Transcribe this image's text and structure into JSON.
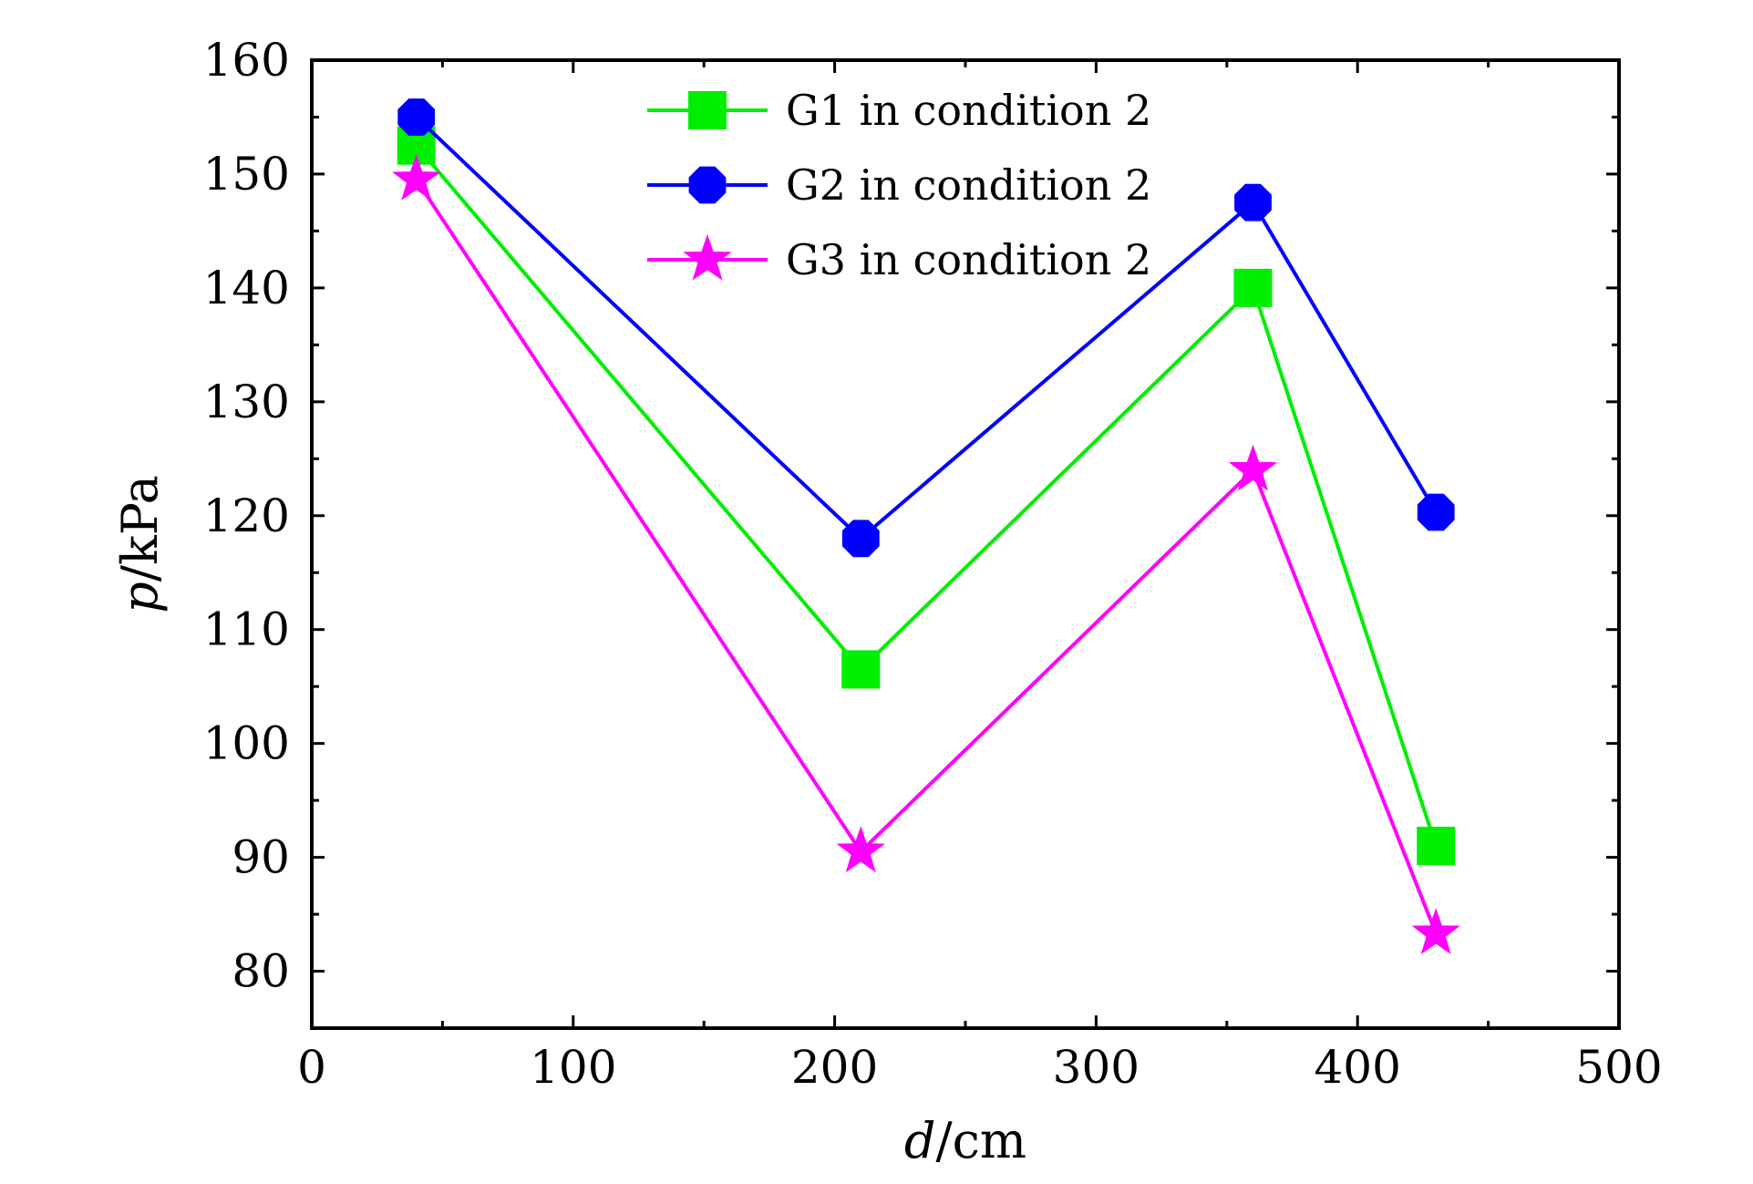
{
  "chart_data": {
    "type": "line",
    "xlabel_var": "d",
    "xlabel_unit": "/cm",
    "ylabel_var": "p",
    "ylabel_unit": "/kPa",
    "xlim": [
      0,
      500
    ],
    "ylim": [
      75,
      160
    ],
    "x_ticks": [
      0,
      100,
      200,
      300,
      400,
      500
    ],
    "y_ticks": [
      80,
      90,
      100,
      110,
      120,
      130,
      140,
      150,
      160
    ],
    "grid": false,
    "legend_position": "top-center",
    "x": [
      40,
      210,
      360,
      430
    ],
    "series": [
      {
        "name": "G1 in condition 2",
        "color": "#00ee00",
        "marker": "square",
        "values": [
          152.5,
          106.5,
          140,
          91
        ],
        "connect": [
          true,
          true,
          true
        ]
      },
      {
        "name": "G2 in condition 2",
        "color": "#0000ff",
        "marker": "octagon",
        "values": [
          155,
          118,
          147.5,
          120.3
        ],
        "connect": [
          true,
          true,
          true
        ]
      },
      {
        "name": "G3 in condition 2",
        "color": "#ff00ff",
        "marker": "star",
        "values": [
          149.5,
          90.5,
          124,
          83.3
        ],
        "connect": [
          true,
          true,
          true
        ]
      }
    ]
  }
}
